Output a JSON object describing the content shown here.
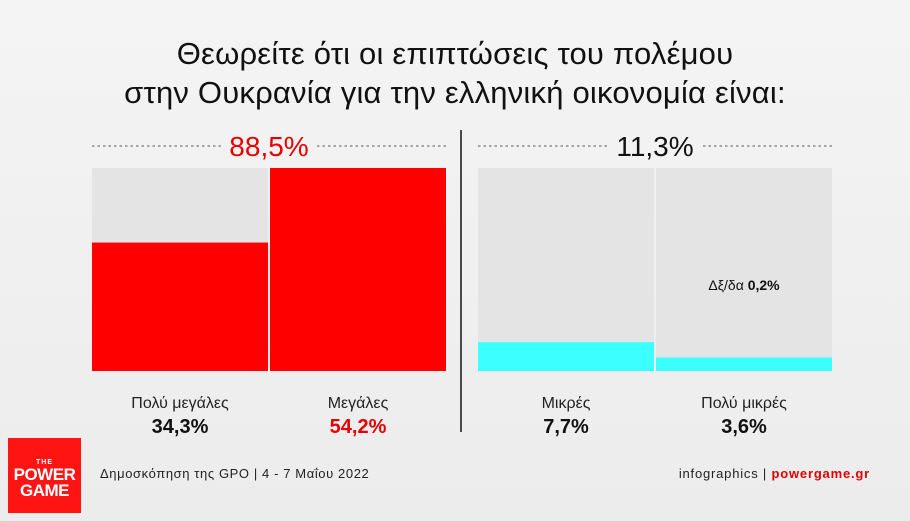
{
  "title_line1": "Θεωρείτε ότι οι επιπτώσεις του πολέμου",
  "title_line2": "στην Ουκρανία για την ελληνική οικονομία είναι:",
  "chart_data": {
    "type": "bar",
    "ylim": [
      0,
      54.2
    ],
    "groups": [
      {
        "total_label": "88,5%",
        "color": "#ff0000",
        "bars": [
          {
            "label": "Πολύ μεγάλες",
            "value": 34.3,
            "value_label": "34,3%"
          },
          {
            "label": "Μεγάλες",
            "value": 54.2,
            "value_label": "54,2%"
          }
        ]
      },
      {
        "total_label": "11,3%",
        "color": "#3cffff",
        "bars": [
          {
            "label": "Μικρές",
            "value": 7.7,
            "value_label": "7,7%"
          },
          {
            "label": "Πολύ μικρές",
            "value": 3.6,
            "value_label": "3,6%"
          }
        ]
      }
    ],
    "annotation": {
      "prefix": "Δξ/δα",
      "value_label": "0,2%"
    }
  },
  "footer": {
    "source": "Δημοσκόπηση της GPO | 4 - 7 Μαΐου 2022",
    "credit": "infographics |",
    "site": "powergame.gr"
  },
  "logo": {
    "the": "THE",
    "line1": "POWER",
    "line2": "GAME"
  }
}
